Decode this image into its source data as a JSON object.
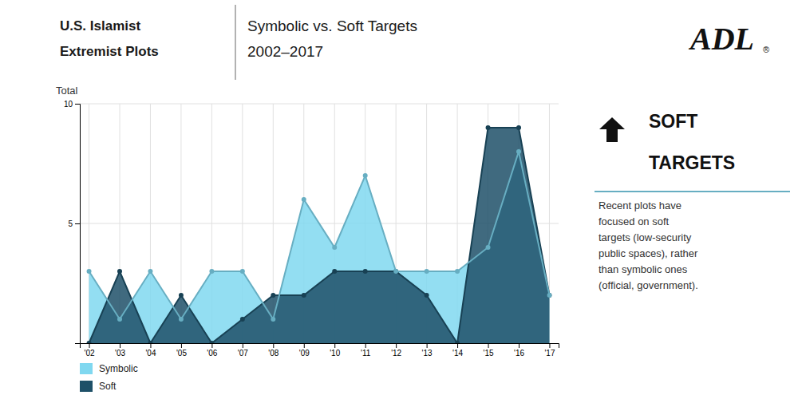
{
  "chart_data": {
    "type": "area",
    "title": [
      "U.S. Islamist",
      "Extremist Plots"
    ],
    "subtitle": [
      "Symbolic vs. Soft Targets",
      "2002–2017"
    ],
    "y_label": "Total",
    "categories": [
      "'02",
      "'03",
      "'04",
      "'05",
      "'06",
      "'07",
      "'08",
      "'09",
      "'10",
      "'11",
      "'12",
      "'13",
      "'14",
      "'15",
      "'16",
      "'17"
    ],
    "series": [
      {
        "name": "Symbolic",
        "color": "#80d8f0",
        "marker": "circle",
        "values": [
          3,
          1,
          3,
          1,
          3,
          3,
          1,
          6,
          4,
          7,
          3,
          3,
          3,
          4,
          8,
          2
        ]
      },
      {
        "name": "Soft",
        "color": "#1e5068",
        "marker": "circle",
        "values": [
          0,
          3,
          0,
          2,
          0,
          1,
          2,
          2,
          3,
          3,
          3,
          2,
          0,
          9,
          9,
          2
        ]
      }
    ],
    "ylim": [
      0,
      10
    ],
    "yticks": [
      5,
      10
    ],
    "grid": true,
    "legend": "lower left",
    "annotations": [
      "ADL",
      "®",
      "SOFT",
      "TARGETS",
      "Recent plots have\nfocused on soft\ntargets (low-security\npublic spaces), rather\nthan symbolic ones\n(official, government)."
    ]
  }
}
